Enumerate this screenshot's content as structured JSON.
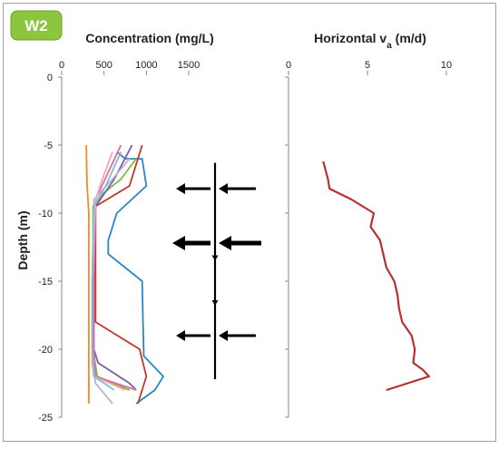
{
  "badge": {
    "label": "W2",
    "color": "#8cc63f"
  },
  "chart_data": [
    {
      "type": "line",
      "title": "Concentration (mg/L)",
      "ylabel": "Depth (m)",
      "xlabel": "",
      "xlim": [
        0,
        1500
      ],
      "ylim": [
        -25,
        0
      ],
      "x_ticks": [
        "0",
        "500",
        "1000",
        "1500"
      ],
      "y_ticks": [
        "0",
        "-5",
        "-10",
        "-15",
        "-20",
        "-25"
      ],
      "x_axis_position": "top",
      "grid": false,
      "series": [
        {
          "color": "#f28c1e",
          "points": [
            [
              290,
              -5
            ],
            [
              300,
              -8
            ],
            [
              320,
              -10
            ],
            [
              320,
              -14
            ],
            [
              320,
              -18
            ],
            [
              320,
              -22
            ],
            [
              320,
              -24
            ]
          ]
        },
        {
          "color": "#2e86c1",
          "points": [
            [
              650,
              -5.5
            ],
            [
              750,
              -6
            ],
            [
              950,
              -6
            ],
            [
              1000,
              -8
            ],
            [
              650,
              -10
            ],
            [
              550,
              -12
            ],
            [
              550,
              -13
            ],
            [
              950,
              -15
            ],
            [
              960,
              -18
            ],
            [
              970,
              -20.5
            ],
            [
              1200,
              -22
            ],
            [
              1100,
              -23
            ],
            [
              880,
              -24
            ]
          ]
        },
        {
          "color": "#c0392b",
          "points": [
            [
              950,
              -5
            ],
            [
              800,
              -8
            ],
            [
              400,
              -9.5
            ],
            [
              400,
              -15
            ],
            [
              400,
              -18
            ],
            [
              920,
              -20
            ],
            [
              1000,
              -22
            ],
            [
              900,
              -24
            ]
          ]
        },
        {
          "color": "#7dbb42",
          "points": [
            [
              880,
              -6
            ],
            [
              700,
              -7.5
            ],
            [
              500,
              -8.5
            ],
            [
              370,
              -9.5
            ],
            [
              370,
              -15
            ],
            [
              370,
              -20
            ],
            [
              420,
              -22
            ],
            [
              800,
              -23
            ]
          ]
        },
        {
          "color": "#7d5ba6",
          "points": [
            [
              830,
              -5
            ],
            [
              620,
              -7.5
            ],
            [
              400,
              -9.5
            ],
            [
              380,
              -15
            ],
            [
              380,
              -20
            ],
            [
              430,
              -21
            ],
            [
              800,
              -22.5
            ],
            [
              880,
              -23
            ]
          ]
        },
        {
          "color": "#e06aa8",
          "points": [
            [
              700,
              -5
            ],
            [
              550,
              -7
            ],
            [
              400,
              -9
            ],
            [
              380,
              -15
            ],
            [
              380,
              -20
            ],
            [
              400,
              -22
            ],
            [
              880,
              -23
            ]
          ]
        },
        {
          "color": "#bbb3d6",
          "points": [
            [
              800,
              -6
            ],
            [
              600,
              -7.5
            ],
            [
              380,
              -9
            ],
            [
              360,
              -15
            ],
            [
              360,
              -21
            ],
            [
              400,
              -22.5
            ],
            [
              600,
              -24
            ]
          ]
        },
        {
          "color": "#f5a8a8",
          "points": [
            [
              600,
              -5.5
            ],
            [
              480,
              -7.5
            ],
            [
              400,
              -9
            ],
            [
              360,
              -15
            ],
            [
              360,
              -21
            ],
            [
              380,
              -22
            ],
            [
              750,
              -23
            ]
          ]
        },
        {
          "color": "#7ac1d6",
          "points": [
            [
              700,
              -5.5
            ],
            [
              520,
              -8
            ],
            [
              380,
              -9.5
            ],
            [
              360,
              -15
            ],
            [
              360,
              -20
            ],
            [
              380,
              -22
            ],
            [
              620,
              -23
            ]
          ]
        }
      ]
    },
    {
      "type": "line",
      "title": "Horizontal v",
      "title_sub": "a",
      "title_suffix": " (m/d)",
      "xlabel": "",
      "ylabel": "",
      "xlim": [
        0,
        10
      ],
      "ylim": [
        -25,
        0
      ],
      "x_ticks": [
        "0",
        "5",
        "10"
      ],
      "x_axis_position": "top",
      "grid": false,
      "series": [
        {
          "color": "#b8312f",
          "points": [
            [
              2.2,
              -6.2
            ],
            [
              2.5,
              -7.5
            ],
            [
              2.6,
              -8.2
            ],
            [
              4.0,
              -9
            ],
            [
              5.4,
              -10
            ],
            [
              5.2,
              -11
            ],
            [
              5.8,
              -12
            ],
            [
              6.0,
              -13
            ],
            [
              6.2,
              -14
            ],
            [
              6.7,
              -15
            ],
            [
              6.9,
              -16
            ],
            [
              7.0,
              -17
            ],
            [
              7.2,
              -18
            ],
            [
              7.8,
              -19
            ],
            [
              8.0,
              -20
            ],
            [
              7.9,
              -21
            ],
            [
              8.5,
              -21.5
            ],
            [
              8.9,
              -22
            ],
            [
              6.2,
              -23
            ]
          ]
        }
      ]
    }
  ],
  "arrows": [
    {
      "depth": -8.2,
      "size": "medium"
    },
    {
      "depth": -12.2,
      "size": "large"
    },
    {
      "depth": -19.0,
      "size": "medium"
    }
  ],
  "arrow_line": {
    "top_depth": -6.3,
    "bottom_depth": -22.2,
    "down_arrow_depths": [
      -13.5,
      -16.8
    ]
  }
}
